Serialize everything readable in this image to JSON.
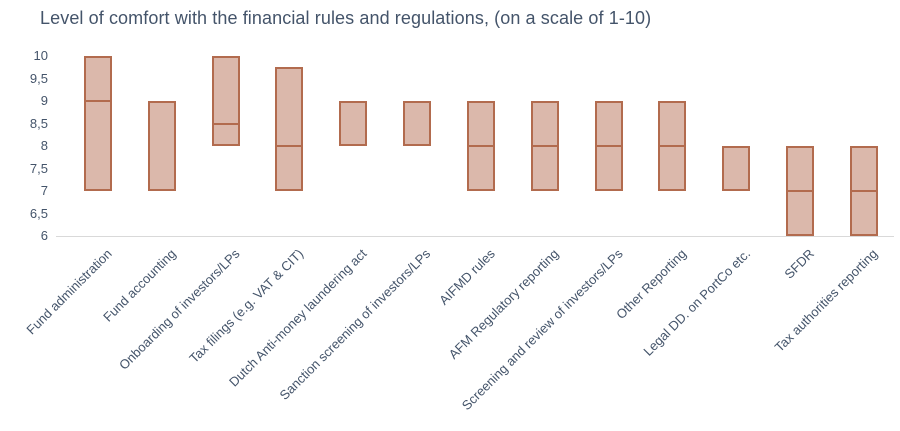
{
  "colors": {
    "background": "#ffffff",
    "title_text": "#44546a",
    "axis_text": "#44546a",
    "bar_fill": "#dbb8ab",
    "bar_border": "#b26b4e",
    "baseline": "#d9d9d9"
  },
  "chart_data": {
    "type": "bar",
    "subtype": "floating-range-bars-with-median-line",
    "title": "Level of comfort with the financial rules and regulations, (on a scale of 1-10)",
    "xlabel": "",
    "ylabel": "",
    "ylim": [
      6,
      10
    ],
    "grid": "single horizontal baseline at y=6 only",
    "legend": "none",
    "decimal_separator": ",",
    "y_ticks": [
      {
        "label": "10",
        "value": 10
      },
      {
        "label": "9,5",
        "value": 9.5
      },
      {
        "label": "9",
        "value": 9
      },
      {
        "label": "8,5",
        "value": 8.5
      },
      {
        "label": "8",
        "value": 8
      },
      {
        "label": "7,5",
        "value": 7.5
      },
      {
        "label": "7",
        "value": 7
      },
      {
        "label": "6,5",
        "value": 6.5
      },
      {
        "label": "6",
        "value": 6
      }
    ],
    "categories": [
      "Fund administration",
      "Fund accounting",
      "Onboarding of investors/LPs",
      "Tax filings (e.g. VAT & CIT)",
      "Dutch Anti-money laundering act",
      "Sanction screening of investors/LPs",
      "AIFMD rules",
      "AFM Regulatory reporting",
      "Screening and review of investors/LPs",
      "Other Reporting",
      "Legal DD. on PortCo etc.",
      "SFDR",
      "Tax authorities reporting"
    ],
    "series": [
      {
        "name": "min",
        "values": [
          7,
          7,
          8,
          7,
          8,
          8,
          7,
          7,
          7,
          7,
          7,
          6,
          6
        ]
      },
      {
        "name": "median",
        "values": [
          9,
          null,
          8.5,
          8,
          null,
          null,
          8,
          8,
          8,
          8,
          null,
          7,
          7
        ]
      },
      {
        "name": "max",
        "values": [
          10,
          9,
          10,
          9.75,
          9,
          9,
          9,
          9,
          9,
          9,
          8,
          8,
          8
        ]
      }
    ]
  }
}
